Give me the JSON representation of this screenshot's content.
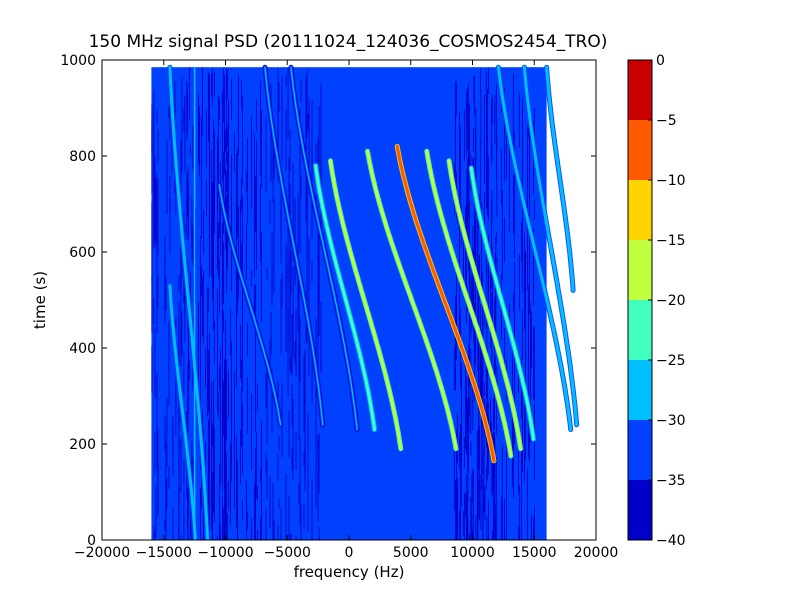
{
  "chart_data": {
    "type": "heatmap",
    "title": "150 MHz signal PSD (20111024_124036_COSMOS2454_TRO)",
    "xlabel": "frequency (Hz)",
    "ylabel": "time (s)",
    "xlim": [
      -20000,
      20000
    ],
    "ylim": [
      0,
      1000
    ],
    "xticks": [
      -20000,
      -15000,
      -10000,
      -5000,
      0,
      5000,
      10000,
      15000,
      20000
    ],
    "xtick_labels": [
      "−20000",
      "−15000",
      "−10000",
      "−5000",
      "0",
      "5000",
      "10000",
      "15000",
      "20000"
    ],
    "yticks": [
      0,
      200,
      400,
      600,
      800,
      1000
    ],
    "ytick_labels": [
      "0",
      "200",
      "400",
      "600",
      "800",
      "1000"
    ],
    "data_extent": {
      "x": [
        -16000,
        16000
      ],
      "y": [
        0,
        985
      ]
    },
    "background_level_db": -35,
    "colorbar": {
      "levels": [
        -40,
        -35,
        -30,
        -25,
        -20,
        -15,
        -10,
        -5,
        0
      ],
      "tick_labels": [
        "−40",
        "−35",
        "−30",
        "−25",
        "−20",
        "−15",
        "−10",
        "−5",
        "0"
      ],
      "colors": [
        "#0000c8",
        "#0040ff",
        "#00bfff",
        "#40ffbf",
        "#bfff40",
        "#ffd400",
        "#ff5a00",
        "#c80000"
      ]
    },
    "traces": [
      {
        "t_start": 0,
        "t_end": 985,
        "f_end": -14500,
        "slope_hz_per_s": -3.75,
        "peak_db": -27
      },
      {
        "t_start": 0,
        "t_end": 530,
        "f_end": -14500,
        "slope_hz_per_s": -4.7,
        "peak_db": -27
      },
      {
        "t_start": 240,
        "t_end": 740,
        "f_end": -10500,
        "slope_hz_per_s": -12,
        "peak_db": -28
      },
      {
        "t_start": 240,
        "t_end": 985,
        "f_end": -6800,
        "slope_hz_per_s": -7.6,
        "peak_db": -28
      },
      {
        "t_start": 230,
        "t_end": 985,
        "f_end": -4700,
        "slope_hz_per_s": -8.6,
        "peak_db": -28
      },
      {
        "t_start": 230,
        "t_end": 780,
        "f_end": -2700,
        "slope_hz_per_s": -10.5,
        "peak_db": -22
      },
      {
        "t_start": 190,
        "t_end": 790,
        "f_end": -1500,
        "slope_hz_per_s": -11.5,
        "peak_db": -17
      },
      {
        "t_start": 190,
        "t_end": 810,
        "f_end": 1500,
        "slope_hz_per_s": -14,
        "peak_db": -17
      },
      {
        "t_start": 165,
        "t_end": 820,
        "f_end": 3900,
        "slope_hz_per_s": -14.5,
        "peak_db": -7
      },
      {
        "t_start": 175,
        "t_end": 810,
        "f_end": 6300,
        "slope_hz_per_s": -13,
        "peak_db": -17
      },
      {
        "t_start": 190,
        "t_end": 790,
        "f_end": 8100,
        "slope_hz_per_s": -11.7,
        "peak_db": -17
      },
      {
        "t_start": 210,
        "t_end": 775,
        "f_end": 9900,
        "slope_hz_per_s": -10.8,
        "peak_db": -22
      },
      {
        "t_start": 230,
        "t_end": 985,
        "f_end": 12100,
        "slope_hz_per_s": -9.4,
        "peak_db": -27
      },
      {
        "t_start": 240,
        "t_end": 985,
        "f_end": 14200,
        "slope_hz_per_s": -6.9,
        "peak_db": -27
      },
      {
        "t_start": 520,
        "t_end": 985,
        "f_end": 16000,
        "slope_hz_per_s": -5.6,
        "peak_db": -27
      }
    ],
    "vertical_lines": [
      {
        "x": -12500,
        "t_start": 0,
        "t_end": 985,
        "peak_db": -30
      }
    ],
    "noise_bands": [
      {
        "x": [
          -16000,
          -12500
        ],
        "level_db": -36
      },
      {
        "x": [
          -13200,
          -7000
        ],
        "level_db": -38
      },
      {
        "x": [
          -11500,
          -9800
        ],
        "level_db": -40
      },
      {
        "x": [
          -7000,
          -2000
        ],
        "level_db": -36
      },
      {
        "x": [
          8500,
          15000
        ],
        "level_db": -37
      },
      {
        "x": [
          9500,
          12000
        ],
        "level_db": -39
      }
    ]
  }
}
